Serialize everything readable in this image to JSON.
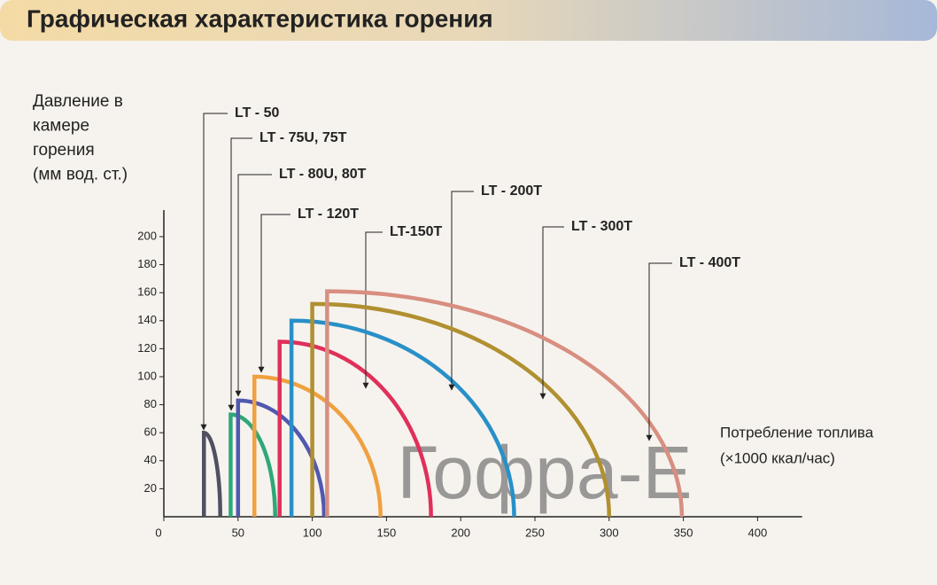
{
  "chart_data": {
    "type": "line",
    "title": "Графическая характеристика горения",
    "y_label": [
      "Давление в",
      "камере",
      "горения",
      "(мм вод. ст.)"
    ],
    "x_label": [
      "Потребление топлива",
      "(×1000 ккал/час)"
    ],
    "watermark": "Гофра-Е",
    "xlim": [
      0,
      430
    ],
    "ylim": [
      0,
      219
    ],
    "xticks": [
      0,
      50,
      100,
      150,
      200,
      250,
      300,
      350,
      400
    ],
    "yticks": [
      20,
      40,
      60,
      80,
      100,
      120,
      140,
      160,
      180,
      200
    ],
    "series": [
      {
        "name": "LT - 50",
        "color": "#4f5060",
        "x": [
          27,
          27,
          38
        ],
        "values": [
          0,
          60,
          0
        ]
      },
      {
        "name": "LT - 75U, 75T",
        "color": "#2fa878",
        "x": [
          45,
          45,
          75
        ],
        "values": [
          0,
          73,
          0
        ]
      },
      {
        "name": "LT - 80U, 80T",
        "color": "#5058b0",
        "x": [
          50,
          50,
          108
        ],
        "values": [
          0,
          83,
          0
        ]
      },
      {
        "name": "LT - 120T",
        "color": "#f0a040",
        "x": [
          61,
          61,
          146
        ],
        "values": [
          0,
          100,
          0
        ]
      },
      {
        "name": "LT-150T",
        "color": "#e0305a",
        "x": [
          78,
          78,
          180
        ],
        "values": [
          0,
          125,
          0
        ]
      },
      {
        "name": "LT - 200T",
        "color": "#2890c8",
        "x": [
          86,
          86,
          236
        ],
        "values": [
          0,
          140,
          0
        ]
      },
      {
        "name": "LT - 300T",
        "color": "#b09030",
        "x": [
          100,
          100,
          300
        ],
        "values": [
          0,
          152,
          0
        ]
      },
      {
        "name": "LT - 400T",
        "color": "#d88e80",
        "x": [
          110,
          110,
          349
        ],
        "values": [
          0,
          161,
          0
        ]
      }
    ]
  }
}
